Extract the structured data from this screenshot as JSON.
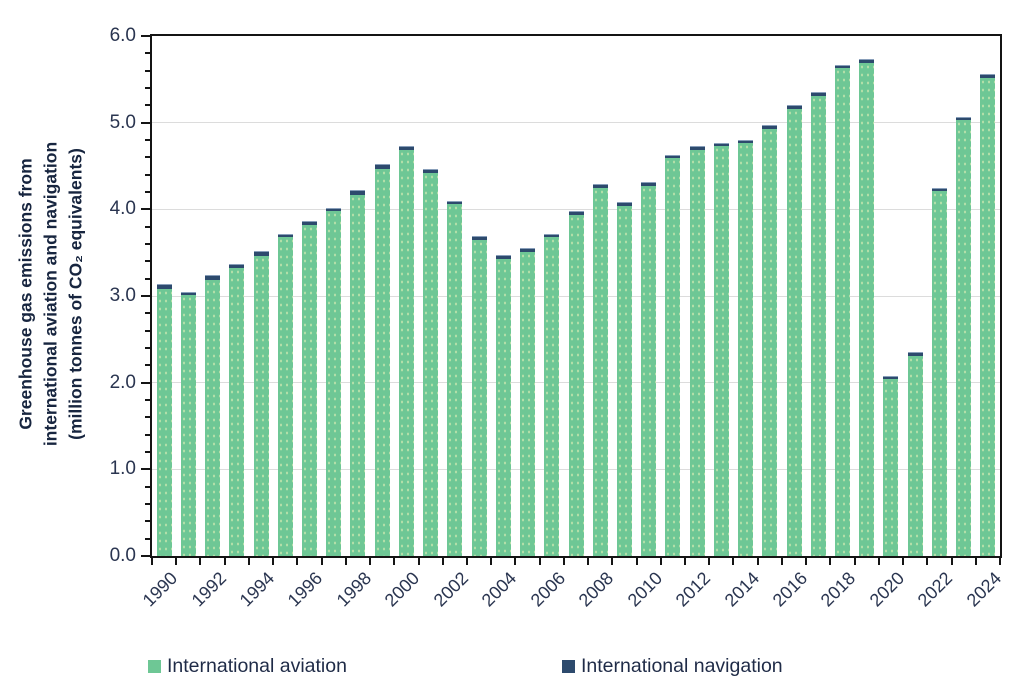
{
  "chart_data": {
    "type": "bar",
    "stacked": true,
    "title": "",
    "ylabel_lines": [
      "Greenhouse gas emissions from",
      "international aviation and navigation",
      "(million tonnes of CO₂ equivalents)"
    ],
    "xlabel": "",
    "categories": [
      "1990",
      "1991",
      "1992",
      "1993",
      "1994",
      "1995",
      "1996",
      "1997",
      "1998",
      "1999",
      "2000",
      "2001",
      "2002",
      "2003",
      "2004",
      "2005",
      "2006",
      "2007",
      "2008",
      "2009",
      "2010",
      "2011",
      "2012",
      "2013",
      "2014",
      "2015",
      "2016",
      "2017",
      "2018",
      "2019",
      "2020",
      "2021",
      "2022",
      "2023",
      "2024"
    ],
    "x_tick_labels": [
      "1990",
      "1992",
      "1994",
      "1996",
      "1998",
      "2000",
      "2002",
      "2004",
      "2006",
      "2008",
      "2010",
      "2012",
      "2014",
      "2016",
      "2018",
      "2020",
      "2022",
      "2024"
    ],
    "x_label_every": 2,
    "series": [
      {
        "name": "International aviation",
        "color": "#6ec795",
        "values": [
          3.08,
          3.01,
          3.19,
          3.32,
          3.46,
          3.68,
          3.82,
          3.98,
          4.17,
          4.47,
          4.68,
          4.42,
          4.06,
          3.65,
          3.43,
          3.51,
          3.68,
          3.94,
          4.25,
          4.04,
          4.27,
          4.59,
          4.69,
          4.73,
          4.76,
          4.93,
          5.16,
          5.31,
          5.63,
          5.69,
          2.04,
          2.31,
          4.21,
          5.03,
          5.52
        ]
      },
      {
        "name": "International navigation",
        "color": "#2d4a6d",
        "values": [
          0.06,
          0.04,
          0.05,
          0.05,
          0.06,
          0.04,
          0.04,
          0.04,
          0.05,
          0.05,
          0.05,
          0.04,
          0.04,
          0.04,
          0.04,
          0.04,
          0.04,
          0.04,
          0.04,
          0.04,
          0.04,
          0.04,
          0.04,
          0.04,
          0.04,
          0.04,
          0.04,
          0.04,
          0.04,
          0.04,
          0.03,
          0.04,
          0.04,
          0.04,
          0.04
        ]
      }
    ],
    "totals": [
      3.14,
      3.05,
      3.24,
      3.37,
      3.52,
      3.72,
      3.86,
      4.02,
      4.22,
      4.52,
      4.73,
      4.46,
      4.1,
      3.69,
      3.47,
      3.55,
      3.72,
      3.98,
      4.29,
      4.08,
      4.31,
      4.63,
      4.73,
      4.77,
      4.8,
      4.97,
      5.2,
      5.35,
      5.67,
      5.73,
      2.07,
      2.35,
      4.25,
      5.07,
      5.56
    ],
    "ylim": [
      0,
      6
    ],
    "y_major_tick_labels": [
      "0.0",
      "1.0",
      "2.0",
      "3.0",
      "4.0",
      "5.0",
      "6.0"
    ],
    "y_minor_step": 0.2,
    "grid": "horizontal major gridlines, light gray; full black plot frame",
    "legend_position": "bottom"
  },
  "colors": {
    "aviation": "#6ec795",
    "navigation": "#2d4a6d",
    "axis": "#141414",
    "gridline": "#dcdcdc",
    "text": "#1f2b47"
  }
}
